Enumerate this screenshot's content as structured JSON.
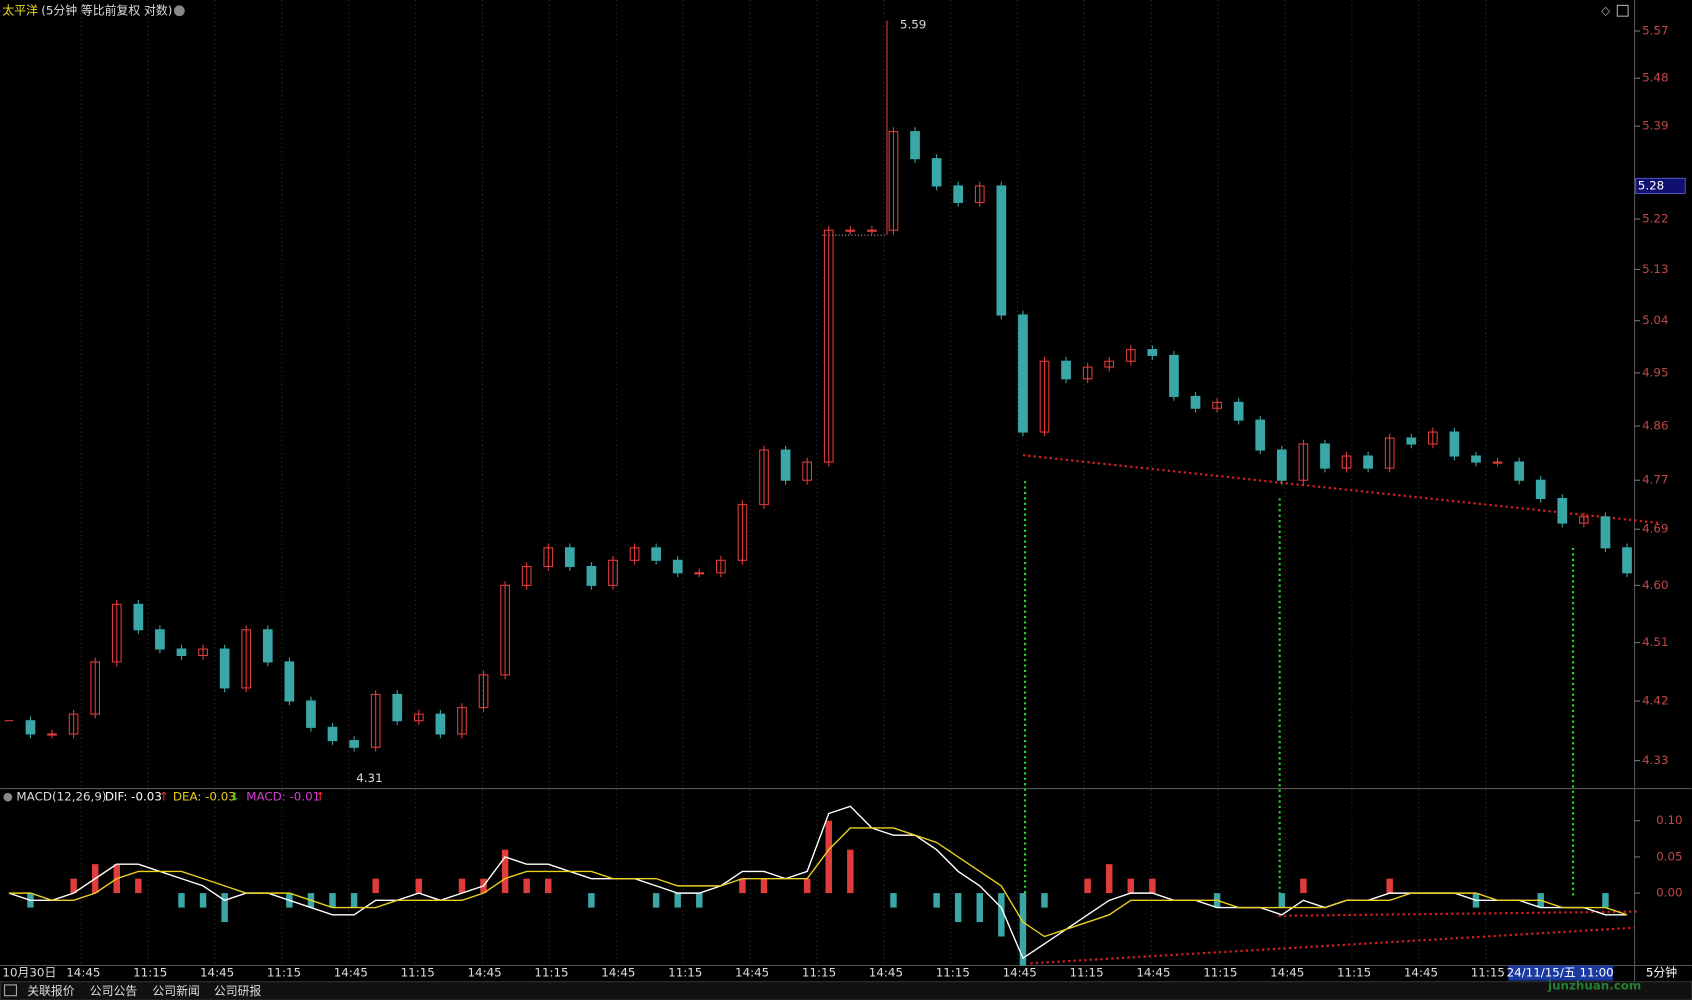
{
  "chart_data": [
    {
      "type": "candlestick",
      "title": "太平洋",
      "subtitle": "(5分钟 等比前复权 对数)",
      "log_scale": true,
      "ylim": [
        4.29,
        5.63
      ],
      "yticks": [
        {
          "value": 5.57,
          "label": "5.57"
        },
        {
          "value": 5.48,
          "label": "5.48"
        },
        {
          "value": 5.39,
          "label": "5.39"
        },
        {
          "value": 5.22,
          "label": "5.22"
        },
        {
          "value": 5.13,
          "label": "5.13"
        },
        {
          "value": 5.04,
          "label": "5.04"
        },
        {
          "value": 4.95,
          "label": "4.95"
        },
        {
          "value": 4.86,
          "label": "4.86"
        },
        {
          "value": 4.77,
          "label": "4.77"
        },
        {
          "value": 4.69,
          "label": "4.69"
        },
        {
          "value": 4.6,
          "label": "4.60"
        },
        {
          "value": 4.51,
          "label": "4.51"
        },
        {
          "value": 4.42,
          "label": "4.42"
        },
        {
          "value": 4.33,
          "label": "4.33"
        }
      ],
      "current_price": {
        "value": 5.28,
        "label": "5.28"
      },
      "high": {
        "value": 5.59,
        "label": "5.59"
      },
      "low": {
        "value": 4.31,
        "label": "4.31"
      },
      "up_color": "#e03c3c",
      "down_color": "#3aa6a6",
      "values": [
        4.39,
        4.37,
        4.37,
        4.4,
        4.48,
        4.57,
        4.53,
        4.5,
        4.49,
        4.5,
        4.44,
        4.53,
        4.48,
        4.42,
        4.38,
        4.36,
        4.35,
        4.43,
        4.39,
        4.4,
        4.37,
        4.41,
        4.46,
        4.6,
        4.63,
        4.66,
        4.63,
        4.6,
        4.64,
        4.66,
        4.64,
        4.62,
        4.62,
        4.64,
        4.73,
        4.82,
        4.77,
        4.8,
        5.2,
        5.2,
        5.2,
        5.38,
        5.33,
        5.28,
        5.25,
        5.28,
        5.05,
        4.85,
        4.97,
        4.94,
        4.96,
        4.97,
        4.99,
        4.98,
        4.91,
        4.89,
        4.9,
        4.87,
        4.82,
        4.77,
        4.83,
        4.79,
        4.81,
        4.79,
        4.84,
        4.83,
        4.85,
        4.81,
        4.8,
        4.8,
        4.77,
        4.74,
        4.7,
        4.71,
        4.66,
        4.62
      ],
      "xtick_labels": [
        "10月30日",
        "14:45",
        "11:15",
        "14:45",
        "11:15",
        "14:45",
        "11:15",
        "14:45",
        "11:15",
        "14:45",
        "11:15",
        "14:45",
        "11:15",
        "14:45",
        "11:15",
        "14:45",
        "11:15",
        "14:45",
        "11:15",
        "14:45",
        "11:15",
        "14:45",
        "11:15"
      ],
      "cursor_time": "24/11/15/五 11:00",
      "period": "5分钟"
    },
    {
      "type": "macd",
      "title": "MACD(12,26,9)",
      "ylim": [
        -0.1,
        0.14
      ],
      "yticks": [
        {
          "value": 0.1,
          "label": "0.10"
        },
        {
          "value": 0.05,
          "label": "0.05"
        },
        {
          "value": 0,
          "label": "0.00"
        }
      ],
      "bar_up_color": "#e03c3c",
      "bar_down_color": "#3aa6a6",
      "series": [
        {
          "name": "DIF: -0.03",
          "arrow": "↑",
          "arrow_color": "#ff3030",
          "color": "#ffffff",
          "style": "line",
          "values": [
            0,
            -0.01,
            -0.01,
            0,
            0.02,
            0.04,
            0.04,
            0.03,
            0.02,
            0.01,
            -0.01,
            0,
            0,
            -0.01,
            -0.02,
            -0.03,
            -0.03,
            -0.01,
            -0.01,
            0,
            -0.01,
            0,
            0.01,
            0.05,
            0.04,
            0.04,
            0.03,
            0.02,
            0.02,
            0.02,
            0.01,
            0,
            0,
            0.01,
            0.03,
            0.03,
            0.02,
            0.03,
            0.11,
            0.12,
            0.09,
            0.08,
            0.08,
            0.06,
            0.03,
            0.01,
            -0.02,
            -0.09,
            -0.07,
            -0.05,
            -0.03,
            -0.01,
            0,
            0,
            -0.01,
            -0.01,
            -0.02,
            -0.02,
            -0.02,
            -0.03,
            -0.01,
            -0.02,
            -0.01,
            -0.01,
            0,
            0,
            0,
            0,
            -0.01,
            -0.01,
            -0.01,
            -0.02,
            -0.02,
            -0.02,
            -0.03,
            -0.03
          ]
        },
        {
          "name": "DEA: -0.03",
          "arrow": "↓",
          "arrow_color": "#30d030",
          "color": "#e8d020",
          "style": "line",
          "values": [
            0,
            0,
            -0.01,
            -0.01,
            0,
            0.02,
            0.03,
            0.03,
            0.03,
            0.02,
            0.01,
            0,
            0,
            0,
            -0.01,
            -0.02,
            -0.02,
            -0.02,
            -0.01,
            -0.01,
            -0.01,
            -0.01,
            0,
            0.02,
            0.03,
            0.03,
            0.03,
            0.03,
            0.02,
            0.02,
            0.02,
            0.01,
            0.01,
            0.01,
            0.02,
            0.02,
            0.02,
            0.02,
            0.06,
            0.09,
            0.09,
            0.09,
            0.08,
            0.07,
            0.05,
            0.03,
            0.01,
            -0.04,
            -0.06,
            -0.05,
            -0.04,
            -0.03,
            -0.01,
            -0.01,
            -0.01,
            -0.01,
            -0.01,
            -0.02,
            -0.02,
            -0.02,
            -0.02,
            -0.02,
            -0.01,
            -0.01,
            -0.01,
            0,
            0,
            0,
            0,
            -0.01,
            -0.01,
            -0.01,
            -0.02,
            -0.02,
            -0.02,
            -0.03
          ]
        },
        {
          "name": "MACD: -0.01",
          "arrow": "↑",
          "arrow_color": "#ff3030",
          "color": "#d040d0",
          "style": "bar",
          "values": [
            0,
            -0.02,
            0,
            0.02,
            0.04,
            0.04,
            0.02,
            0,
            -0.02,
            -0.02,
            -0.04,
            0,
            0,
            -0.02,
            -0.02,
            -0.02,
            -0.02,
            0.02,
            0,
            0.02,
            0,
            0.02,
            0.02,
            0.06,
            0.02,
            0.02,
            0,
            -0.02,
            0,
            0,
            -0.02,
            -0.02,
            -0.02,
            0,
            0.02,
            0.02,
            0,
            0.02,
            0.1,
            0.06,
            0,
            -0.02,
            0,
            -0.02,
            -0.04,
            -0.04,
            -0.06,
            -0.1,
            -0.02,
            0,
            0.02,
            0.04,
            0.02,
            0.02,
            0,
            0,
            -0.02,
            0,
            0,
            -0.02,
            0.02,
            0,
            0,
            0,
            0.02,
            0,
            0,
            0,
            -0.02,
            0,
            0,
            -0.02,
            0,
            0,
            -0.02,
            0
          ]
        }
      ]
    }
  ],
  "toolbar": {
    "tabs": [
      "关联报价",
      "公司公告",
      "公司新闻",
      "公司研报"
    ]
  },
  "watermark": "junzhuan.com"
}
